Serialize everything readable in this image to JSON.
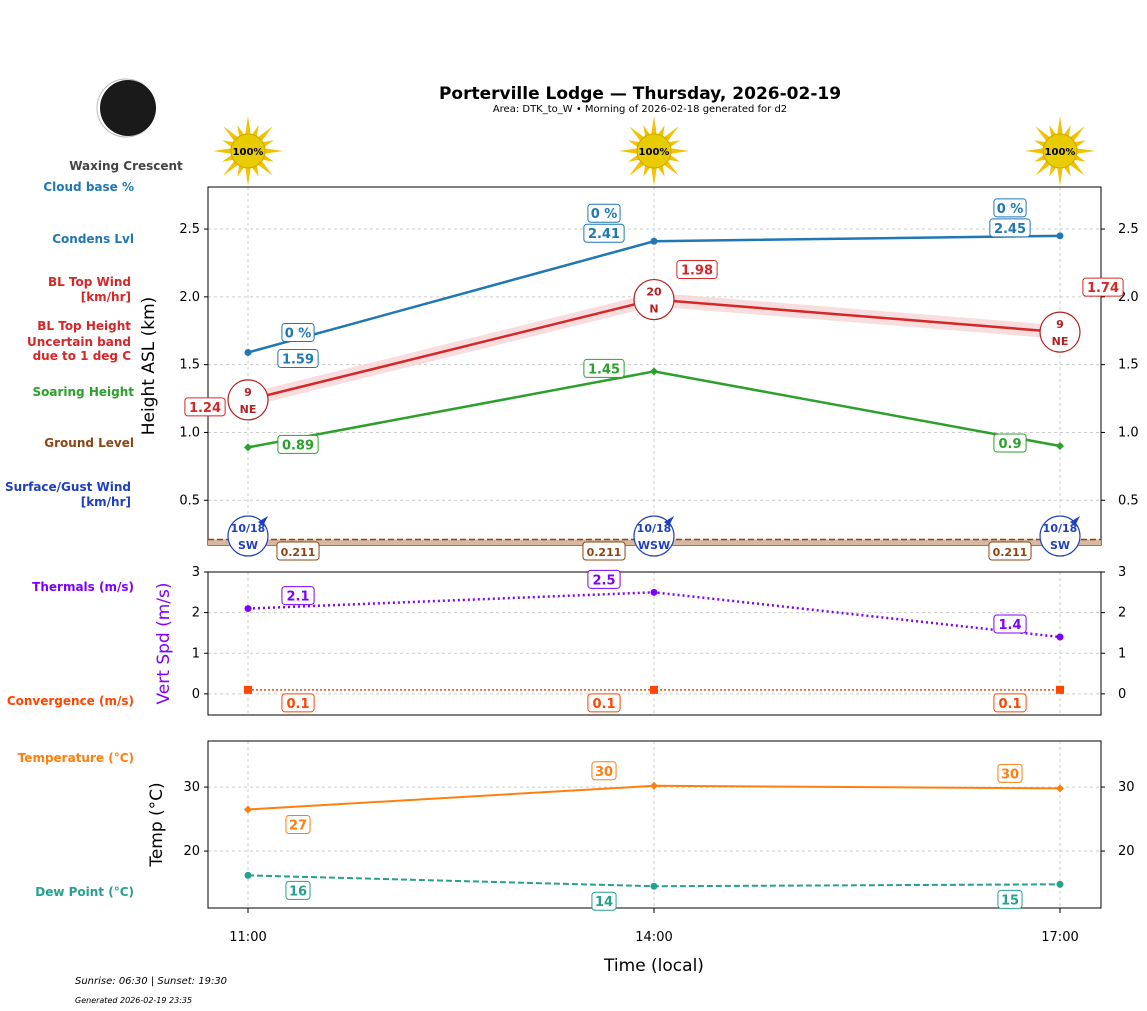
{
  "title": "Porterville Lodge — Thursday, 2026-02-19",
  "subtitle": "Area: DTK_to_W • Morning of 2026-02-18 generated for d2",
  "moon_phase": "Waxing Crescent",
  "sunrise_sunset": "Sunrise: 06:30 | Sunset: 19:30",
  "generated": "Generated 2026-02-19 23:35",
  "colors": {
    "cloud": "#1f77b4",
    "bl_top": "#d62728",
    "soaring": "#2ca02c",
    "ground": "#8b4513",
    "surface_wind": "#1f3fbf",
    "thermals": "#7f00ff",
    "convergence": "#ff4500",
    "temperature": "#ff7f0e",
    "dew_point": "#26a08f"
  },
  "chart_data": [
    {
      "type": "line",
      "ylabel": "Height ASL (km)",
      "ylim": [
        0.17,
        2.81
      ],
      "yticks": [
        "0.5",
        "1.0",
        "1.5",
        "2.0",
        "2.5"
      ],
      "grid": true,
      "x": [
        "11:00",
        "14:00",
        "17:00"
      ],
      "sun_percent": [
        "100%",
        "100%",
        "100%"
      ],
      "left_labels": [
        "Cloud base %",
        "Condens Lvl",
        "BL Top Wind [km/hr]",
        "BL Top Height Uncertain band due to 1 deg C",
        "Soaring Height",
        "Ground Level",
        "Surface/Gust Wind [km/hr]"
      ],
      "cloud_base_pct": [
        "0 %",
        "0 %",
        "0 %"
      ],
      "condens_lvl": [
        1.59,
        2.41,
        2.45
      ],
      "bl_top": [
        1.24,
        1.98,
        1.74
      ],
      "bl_top_band": 0.05,
      "bl_top_wind": [
        {
          "speed": "9",
          "dir": "NE"
        },
        {
          "speed": "20",
          "dir": "N"
        },
        {
          "speed": "9",
          "dir": "NE"
        }
      ],
      "soaring": [
        0.89,
        1.45,
        0.9
      ],
      "ground": [
        0.211,
        0.211,
        0.211
      ],
      "surface_wind": [
        {
          "speed": "10/18",
          "dir": "SW"
        },
        {
          "speed": "10/18",
          "dir": "WSW"
        },
        {
          "speed": "10/18",
          "dir": "SW"
        }
      ]
    },
    {
      "type": "line",
      "ylabel": "Vert Spd (m/s)",
      "ylim": [
        -0.52,
        3
      ],
      "yticks": [
        "0",
        "1",
        "2",
        "3"
      ],
      "grid": true,
      "left_labels": [
        "Thermals (m/s)",
        "Convergence (m/s)"
      ],
      "thermals": [
        2.1,
        2.5,
        1.4
      ],
      "convergence": [
        0.1,
        0.1,
        0.1
      ]
    },
    {
      "type": "line",
      "ylabel": "Temp (°C)",
      "xlabel": "Time (local)",
      "ylim": [
        11.1,
        37.2
      ],
      "yticks": [
        "20",
        "30"
      ],
      "grid": true,
      "left_labels": [
        "Temperature (°C)",
        "Dew Point (°C)"
      ],
      "temperature": [
        26.5,
        30.2,
        29.8
      ],
      "temperature_labels": [
        "27",
        "30",
        "30"
      ],
      "dew_point": [
        16.2,
        14.5,
        14.8
      ],
      "dew_point_labels": [
        "16",
        "14",
        "15"
      ]
    }
  ]
}
